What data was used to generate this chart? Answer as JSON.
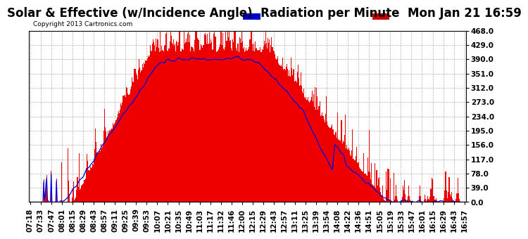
{
  "title": "Solar & Effective (w/Incidence Angle)  Radiation per Minute  Mon Jan 21 16:59",
  "copyright": "Copyright 2013 Cartronics.com",
  "ylim": [
    0.0,
    468.0
  ],
  "yticks": [
    0.0,
    39.0,
    78.0,
    117.0,
    156.0,
    195.0,
    234.0,
    273.0,
    312.0,
    351.0,
    390.0,
    429.0,
    468.0
  ],
  "bg_color": "#ffffff",
  "grid_color": "#b0b0b0",
  "red_color": "#ee0000",
  "blue_color": "#0000dd",
  "legend_blue_bg": "#0000cc",
  "legend_red_bg": "#cc0000",
  "title_fontsize": 12,
  "tick_fontsize": 7.5,
  "x_tick_labels": [
    "07:18",
    "07:33",
    "07:47",
    "08:01",
    "08:15",
    "08:29",
    "08:43",
    "08:57",
    "09:11",
    "09:25",
    "09:39",
    "09:53",
    "10:07",
    "10:21",
    "10:35",
    "10:49",
    "11:03",
    "11:17",
    "11:32",
    "11:46",
    "12:00",
    "12:15",
    "12:29",
    "12:43",
    "12:57",
    "13:11",
    "13:25",
    "13:39",
    "13:54",
    "14:08",
    "14:22",
    "14:36",
    "14:51",
    "15:05",
    "15:19",
    "15:33",
    "15:47",
    "16:01",
    "16:15",
    "16:29",
    "16:43",
    "16:57"
  ]
}
